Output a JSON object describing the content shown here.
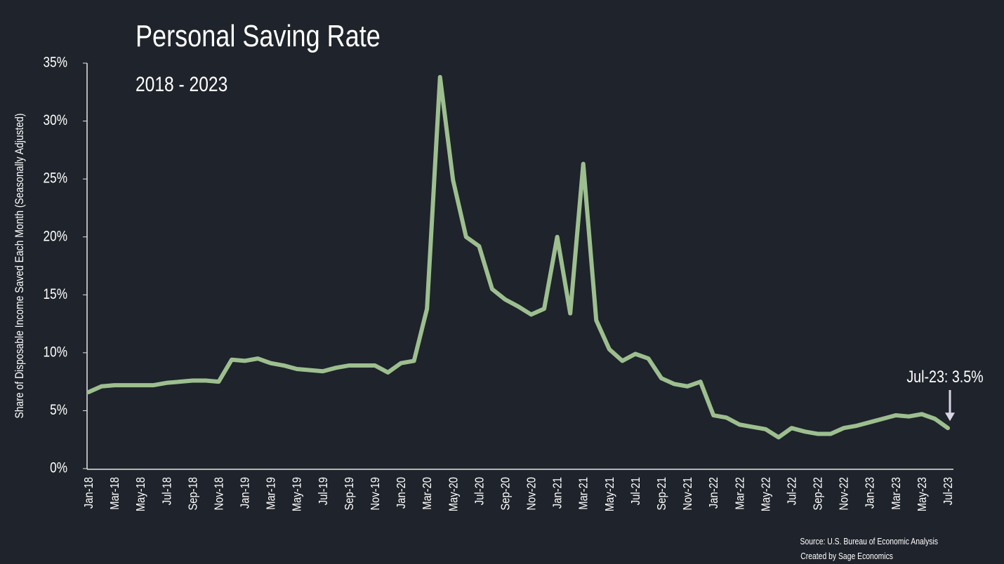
{
  "chart_data": {
    "type": "line",
    "title": "Personal Saving Rate",
    "subtitle": "2018 - 2023",
    "y_label": "Share of Disposable Income Saved Each Month (Seasonally Adjusted)",
    "annotation": "Jul-23: 3.5%",
    "source": "Source: U.S. Bureau of Economic Analysis",
    "credit": "Created by Sage Economics",
    "categories": [
      "Jan-18",
      null,
      "Mar-18",
      null,
      "May-18",
      null,
      "Jul-18",
      null,
      "Sep-18",
      null,
      "Nov-18",
      null,
      "Jan-19",
      null,
      "Mar-19",
      null,
      "May-19",
      null,
      "Jul-19",
      null,
      "Sep-19",
      null,
      "Nov-19",
      null,
      "Jan-20",
      null,
      "Mar-20",
      null,
      "May-20",
      null,
      "Jul-20",
      null,
      "Sep-20",
      null,
      "Nov-20",
      null,
      "Jan-21",
      null,
      "Mar-21",
      null,
      "May-21",
      null,
      "Jul-21",
      null,
      "Sep-21",
      null,
      "Nov-21",
      null,
      "Jan-22",
      null,
      "Mar-22",
      null,
      "May-22",
      null,
      "Jul-22",
      null,
      "Sep-22",
      null,
      "Nov-22",
      null,
      "Jan-23",
      null,
      "Mar-23",
      null,
      "May-23",
      null,
      "Jul-23"
    ],
    "series": [
      {
        "name": "Personal Saving Rate",
        "color": "#9dbf8f",
        "values": [
          6.6,
          7.1,
          7.2,
          7.2,
          7.2,
          7.2,
          7.4,
          7.5,
          7.6,
          7.6,
          7.5,
          9.4,
          9.3,
          9.5,
          9.1,
          8.9,
          8.6,
          8.5,
          8.4,
          8.7,
          8.9,
          8.9,
          8.9,
          8.3,
          9.1,
          9.3,
          13.8,
          33.8,
          24.9,
          20.0,
          19.2,
          15.5,
          14.6,
          14.0,
          13.3,
          13.8,
          20.0,
          13.4,
          26.3,
          12.8,
          10.3,
          9.3,
          9.9,
          9.5,
          7.8,
          7.3,
          7.1,
          7.5,
          4.6,
          4.4,
          3.8,
          3.6,
          3.4,
          2.7,
          3.5,
          3.2,
          3.0,
          3.0,
          3.5,
          3.7,
          4.0,
          4.3,
          4.6,
          4.5,
          4.7,
          4.3,
          3.5
        ]
      }
    ],
    "ylim": [
      0,
      35
    ],
    "yticks": [
      {
        "value": 0,
        "label": "0%"
      },
      {
        "value": 5,
        "label": "5%"
      },
      {
        "value": 10,
        "label": "10%"
      },
      {
        "value": 15,
        "label": "15%"
      },
      {
        "value": 20,
        "label": "20%"
      },
      {
        "value": 25,
        "label": "25%"
      },
      {
        "value": 30,
        "label": "30%"
      },
      {
        "value": 35,
        "label": "35%"
      }
    ],
    "grid": false
  }
}
